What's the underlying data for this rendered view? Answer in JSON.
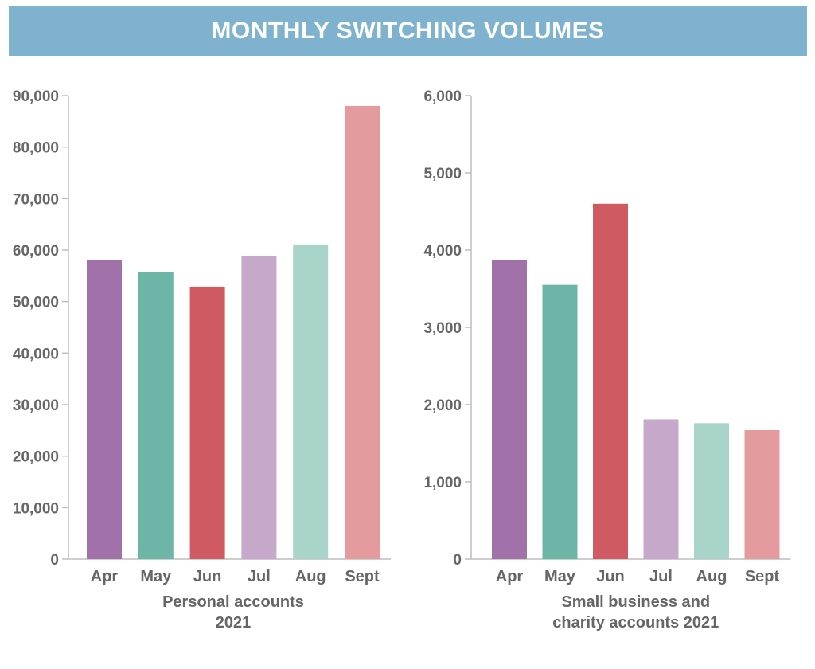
{
  "header": {
    "title": "MONTHLY SWITCHING VOLUMES"
  },
  "chart_data": [
    {
      "type": "bar",
      "categories": [
        "Apr",
        "May",
        "Jun",
        "Jul",
        "Aug",
        "Sept"
      ],
      "values": [
        58100,
        55800,
        52900,
        58800,
        61100,
        88000
      ],
      "colors": [
        "#a072a9",
        "#6db5a7",
        "#d05a62",
        "#c6a8cb",
        "#a8d4ca",
        "#e39b9e"
      ],
      "yticks": [
        "0",
        "10,000",
        "20,000",
        "30,000",
        "40,000",
        "50,000",
        "60,000",
        "70,000",
        "80,000",
        "90,000"
      ],
      "ylim": [
        0,
        90000
      ],
      "xlabel": [
        "Personal accounts",
        "2021"
      ],
      "ylabel": "",
      "grid": false
    },
    {
      "type": "bar",
      "categories": [
        "Apr",
        "May",
        "Jun",
        "Jul",
        "Aug",
        "Sept"
      ],
      "values": [
        3870,
        3550,
        4600,
        1810,
        1760,
        1670
      ],
      "colors": [
        "#a072a9",
        "#6db5a7",
        "#d05a62",
        "#c6a8cb",
        "#a8d4ca",
        "#e39b9e"
      ],
      "yticks": [
        "0",
        "1,000",
        "2,000",
        "3,000",
        "4,000",
        "5,000",
        "6,000"
      ],
      "ylim": [
        0,
        6000
      ],
      "xlabel": [
        "Small business and",
        "charity accounts 2021"
      ],
      "ylabel": "",
      "grid": false
    }
  ]
}
